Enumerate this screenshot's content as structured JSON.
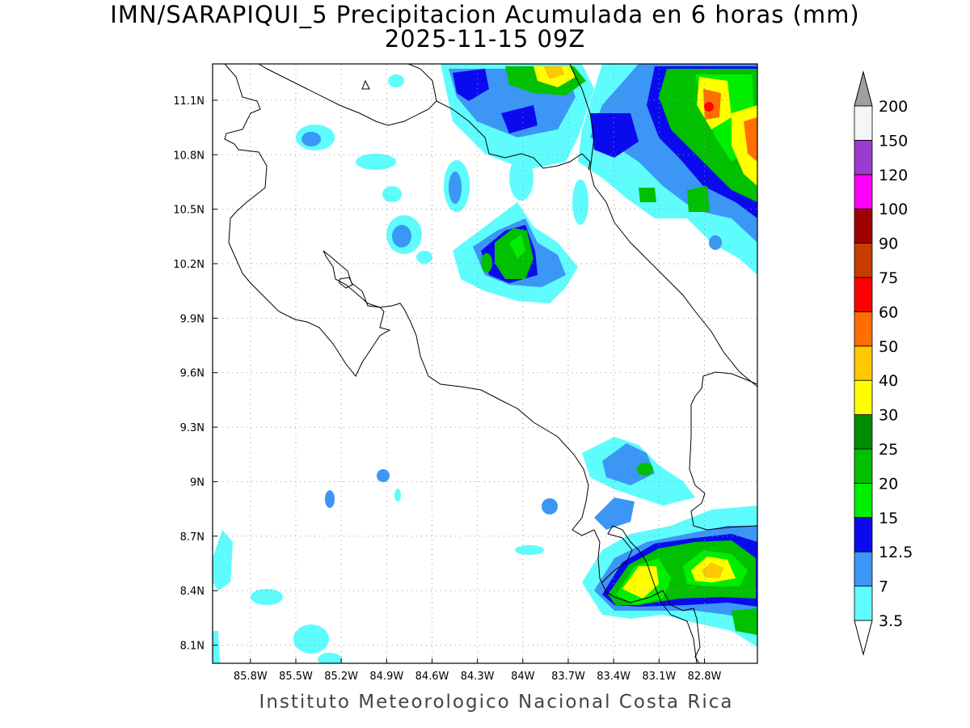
{
  "title_line1": "IMN/SARAPIQUI_5 Precipitacion Acumulada en 6 horas (mm)",
  "title_line2": "2025-11-15 09Z",
  "footer": "Instituto Meteorologico Nacional Costa Rica",
  "map": {
    "lon_ticks": [
      "85.8W",
      "85.5W",
      "85.2W",
      "84.9W",
      "84.6W",
      "84.3W",
      "84W",
      "83.7W",
      "83.4W",
      "83.1W",
      "82.8W"
    ],
    "lat_ticks": [
      "11.1N",
      "10.8N",
      "10.5N",
      "10.2N",
      "9.9N",
      "9.6N",
      "9.3N",
      "9N",
      "8.7N",
      "8.4N",
      "8.1N"
    ],
    "lon_range": [
      -86.05,
      -82.45
    ],
    "lat_range": [
      8.0,
      11.3
    ],
    "grid": "dotted"
  },
  "legend": {
    "labels": [
      "3.5",
      "7",
      "12.5",
      "15",
      "20",
      "25",
      "30",
      "40",
      "50",
      "60",
      "75",
      "90",
      "100",
      "120",
      "150",
      "200"
    ],
    "colors": [
      "#ffffff",
      "#5efcfc",
      "#3c96f5",
      "#0a0aef",
      "#00ee00",
      "#00c000",
      "#008c00",
      "#ffff00",
      "#ffc800",
      "#ff6e00",
      "#ff0000",
      "#c83c00",
      "#a00000",
      "#ff00ff",
      "#9c3cce",
      "#f5f5f5"
    ],
    "over_color": "#a0a0a0",
    "under_color": "#ffffff"
  }
}
